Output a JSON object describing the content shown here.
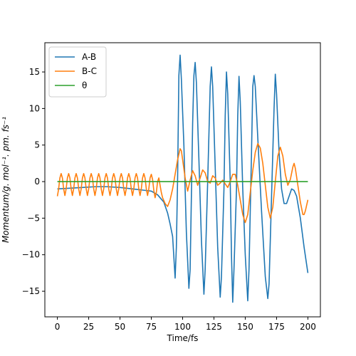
{
  "chart_data": {
    "type": "line",
    "xlabel": "Time/fs",
    "ylabel": "Momentum/g. mol⁻¹. pm. fs⁻¹",
    "xlim": [
      -10,
      210
    ],
    "ylim": [
      -18.5,
      19.0
    ],
    "xticks": [
      0,
      25,
      50,
      75,
      100,
      125,
      150,
      175,
      200
    ],
    "yticks": [
      -15,
      -10,
      -5,
      0,
      5,
      10,
      15
    ],
    "grid": false,
    "legend_position": "top-left",
    "series": [
      {
        "name": "A-B",
        "color": "#1f77b4",
        "points": [
          [
            0,
            -1.0
          ],
          [
            10,
            -0.9
          ],
          [
            20,
            -0.8
          ],
          [
            30,
            -0.7
          ],
          [
            40,
            -0.7
          ],
          [
            50,
            -0.8
          ],
          [
            60,
            -1.0
          ],
          [
            70,
            -1.2
          ],
          [
            75,
            -1.3
          ],
          [
            80,
            -1.8
          ],
          [
            85,
            -2.8
          ],
          [
            88,
            -4.3
          ],
          [
            90,
            -5.8
          ],
          [
            92,
            -7.5
          ],
          [
            94,
            -13.2
          ],
          [
            95,
            -9
          ],
          [
            96,
            0.5
          ],
          [
            97,
            14.5
          ],
          [
            98,
            17.3
          ],
          [
            99,
            14
          ],
          [
            101,
            5
          ],
          [
            103,
            -7
          ],
          [
            105,
            -14.6
          ],
          [
            106,
            -12
          ],
          [
            107,
            -2
          ],
          [
            108,
            8
          ],
          [
            109,
            14.5
          ],
          [
            110,
            16.3
          ],
          [
            111,
            13.5
          ],
          [
            113,
            3
          ],
          [
            115,
            -8
          ],
          [
            117,
            -15.4
          ],
          [
            118,
            -12
          ],
          [
            120,
            0
          ],
          [
            122,
            13
          ],
          [
            123,
            15.7
          ],
          [
            124,
            13
          ],
          [
            126,
            2
          ],
          [
            128,
            -9
          ],
          [
            130,
            -15.8
          ],
          [
            131,
            -13
          ],
          [
            133,
            -1
          ],
          [
            134,
            9
          ],
          [
            135,
            15.0
          ],
          [
            136,
            12
          ],
          [
            138,
            0
          ],
          [
            139,
            -10
          ],
          [
            140,
            -16.5
          ],
          [
            141,
            -12
          ],
          [
            143,
            -1
          ],
          [
            144,
            9
          ],
          [
            145,
            14.4
          ],
          [
            146,
            11
          ],
          [
            148,
            -1
          ],
          [
            150,
            -10
          ],
          [
            152,
            -16.3
          ],
          [
            153,
            -12
          ],
          [
            155,
            4
          ],
          [
            156,
            13
          ],
          [
            157,
            14.5
          ],
          [
            158,
            13
          ],
          [
            160,
            6
          ],
          [
            163,
            -4
          ],
          [
            166,
            -13
          ],
          [
            168,
            -16.0
          ],
          [
            169,
            -14
          ],
          [
            171,
            -2
          ],
          [
            173,
            10
          ],
          [
            174,
            14.7
          ],
          [
            175,
            12
          ],
          [
            177,
            4
          ],
          [
            179,
            -1
          ],
          [
            181,
            -3
          ],
          [
            183,
            -3
          ],
          [
            185,
            -2
          ],
          [
            187,
            -1
          ],
          [
            189,
            -1.2
          ],
          [
            191,
            -2
          ],
          [
            194,
            -5
          ],
          [
            197,
            -9
          ],
          [
            200,
            -12.5
          ]
        ]
      },
      {
        "name": "B-C",
        "color": "#ff7f0e",
        "points": [
          [
            0,
            -2.0
          ],
          [
            1,
            -1.0
          ],
          [
            2,
            0.5
          ],
          [
            3,
            1.1
          ],
          [
            4,
            0.5
          ],
          [
            5,
            -1.0
          ],
          [
            6,
            -1.9
          ],
          [
            7,
            -1.0
          ],
          [
            8,
            0.5
          ],
          [
            9,
            1.1
          ],
          [
            10,
            0.5
          ],
          [
            11,
            -1.0
          ],
          [
            12,
            -1.9
          ],
          [
            13,
            -1.0
          ],
          [
            14,
            0.5
          ],
          [
            15,
            1.1
          ],
          [
            16,
            0.5
          ],
          [
            17,
            -1.0
          ],
          [
            18,
            -1.9
          ],
          [
            19,
            -1.0
          ],
          [
            20,
            0.5
          ],
          [
            21,
            1.1
          ],
          [
            22,
            0.5
          ],
          [
            23,
            -1.0
          ],
          [
            24,
            -1.9
          ],
          [
            25,
            -1.0
          ],
          [
            26,
            0.5
          ],
          [
            27,
            1.1
          ],
          [
            28,
            0.5
          ],
          [
            29,
            -1.0
          ],
          [
            30,
            -1.9
          ],
          [
            31,
            -1.0
          ],
          [
            32,
            0.5
          ],
          [
            33,
            1.1
          ],
          [
            34,
            0.5
          ],
          [
            35,
            -1.0
          ],
          [
            36,
            -1.9
          ],
          [
            37,
            -1.0
          ],
          [
            38,
            0.5
          ],
          [
            39,
            1.1
          ],
          [
            40,
            0.5
          ],
          [
            41,
            -1.0
          ],
          [
            42,
            -1.9
          ],
          [
            43,
            -1.0
          ],
          [
            44,
            0.5
          ],
          [
            45,
            1.1
          ],
          [
            46,
            0.5
          ],
          [
            47,
            -1.0
          ],
          [
            48,
            -1.9
          ],
          [
            49,
            -1.0
          ],
          [
            50,
            0.5
          ],
          [
            51,
            1.1
          ],
          [
            52,
            0.5
          ],
          [
            53,
            -1.0
          ],
          [
            54,
            -1.9
          ],
          [
            55,
            -1.0
          ],
          [
            56,
            0.5
          ],
          [
            57,
            1.1
          ],
          [
            58,
            0.5
          ],
          [
            59,
            -1.0
          ],
          [
            60,
            -1.9
          ],
          [
            61,
            -1.0
          ],
          [
            62,
            0.5
          ],
          [
            63,
            1.1
          ],
          [
            64,
            0.5
          ],
          [
            65,
            -1.0
          ],
          [
            66,
            -1.9
          ],
          [
            67,
            -1.0
          ],
          [
            68,
            0.5
          ],
          [
            69,
            1.1
          ],
          [
            70,
            0.5
          ],
          [
            71,
            -1.0
          ],
          [
            72,
            -1.9
          ],
          [
            73,
            -1.0
          ],
          [
            74,
            0.5
          ],
          [
            75,
            1.0
          ],
          [
            76,
            0.3
          ],
          [
            77,
            -1.2
          ],
          [
            78,
            -2.2
          ],
          [
            79,
            -1.5
          ],
          [
            80,
            0.0
          ],
          [
            81,
            0.5
          ],
          [
            82,
            -0.5
          ],
          [
            83,
            -1.5
          ],
          [
            84,
            -2.2
          ],
          [
            86,
            -3.0
          ],
          [
            88,
            -3.4
          ],
          [
            90,
            -2.5
          ],
          [
            92,
            -1.0
          ],
          [
            94,
            1.0
          ],
          [
            96,
            3.0
          ],
          [
            98,
            4.5
          ],
          [
            99,
            4.2
          ],
          [
            100,
            3.0
          ],
          [
            102,
            0.5
          ],
          [
            104,
            -1.3
          ],
          [
            106,
            0.2
          ],
          [
            108,
            1.5
          ],
          [
            110,
            0.8
          ],
          [
            112,
            -0.5
          ],
          [
            114,
            0.5
          ],
          [
            116,
            1.6
          ],
          [
            118,
            1.2
          ],
          [
            120,
            0.0
          ],
          [
            122,
            -0.2
          ],
          [
            124,
            0.8
          ],
          [
            126,
            0.5
          ],
          [
            128,
            -0.5
          ],
          [
            130,
            -0.2
          ],
          [
            132,
            0.2
          ],
          [
            134,
            -0.3
          ],
          [
            136,
            -0.8
          ],
          [
            138,
            0.0
          ],
          [
            140,
            1.0
          ],
          [
            142,
            1.0
          ],
          [
            144,
            -0.5
          ],
          [
            146,
            -2.5
          ],
          [
            148,
            -4.5
          ],
          [
            150,
            -5.6
          ],
          [
            152,
            -4.5
          ],
          [
            154,
            -1.5
          ],
          [
            156,
            1.5
          ],
          [
            158,
            4.0
          ],
          [
            160,
            5.2
          ],
          [
            162,
            4.6
          ],
          [
            164,
            2.5
          ],
          [
            166,
            -0.5
          ],
          [
            168,
            -3.5
          ],
          [
            170,
            -5.0
          ],
          [
            172,
            -3.5
          ],
          [
            174,
            0.0
          ],
          [
            176,
            3.5
          ],
          [
            178,
            4.7
          ],
          [
            180,
            3.5
          ],
          [
            182,
            1.0
          ],
          [
            184,
            -0.5
          ],
          [
            186,
            0.3
          ],
          [
            188,
            2.0
          ],
          [
            189,
            2.5
          ],
          [
            190,
            1.8
          ],
          [
            192,
            -0.5
          ],
          [
            194,
            -2.8
          ],
          [
            196,
            -4.5
          ],
          [
            197,
            -4.5
          ],
          [
            198,
            -4.0
          ],
          [
            200,
            -2.5
          ]
        ]
      },
      {
        "name": "θ",
        "color": "#2ca02c",
        "points": [
          [
            0,
            0
          ],
          [
            200,
            0
          ]
        ]
      }
    ]
  }
}
